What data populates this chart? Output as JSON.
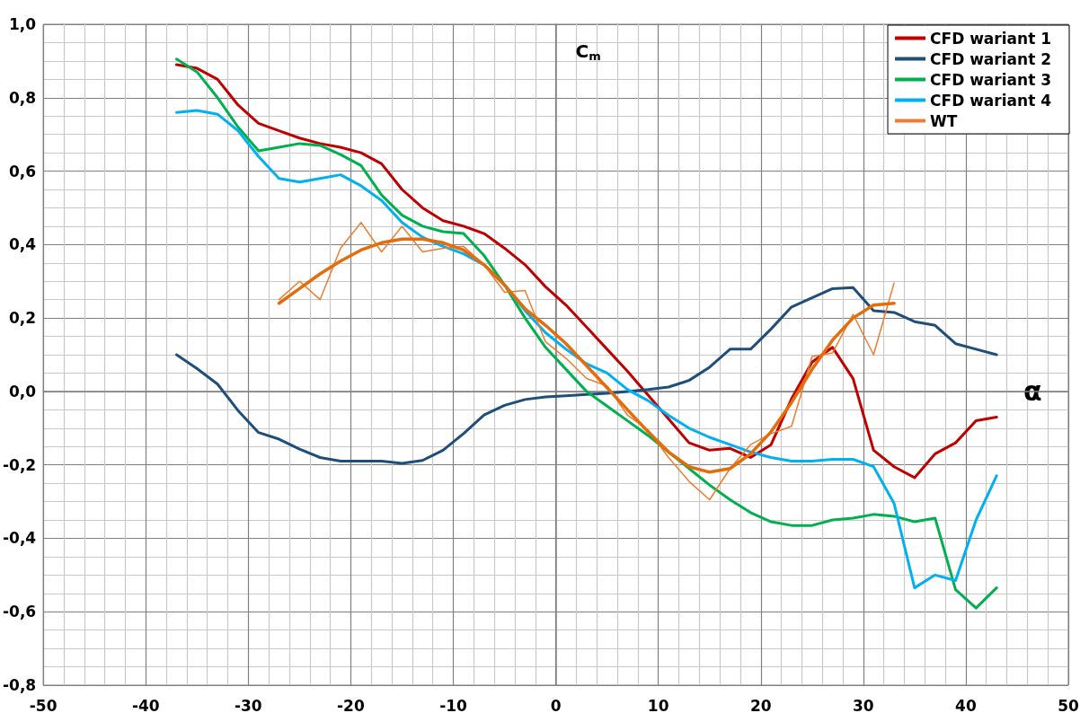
{
  "chart_data": {
    "type": "line",
    "ylabel": "C$_{m}$",
    "xlabel": "α",
    "xlim": [
      -50,
      50
    ],
    "ylim": [
      -0.8,
      1.0
    ],
    "xticks": [
      -50,
      -40,
      -30,
      -20,
      -10,
      0,
      10,
      20,
      30,
      40,
      50
    ],
    "yticks": [
      {
        "value": -0.8,
        "label": "-0,8"
      },
      {
        "value": -0.6,
        "label": "-0,6"
      },
      {
        "value": -0.4,
        "label": "-0,4"
      },
      {
        "value": -0.2,
        "label": "-0,2"
      },
      {
        "value": 0,
        "label": "0,0"
      },
      {
        "value": 0.2,
        "label": "0,2"
      },
      {
        "value": 0.4,
        "label": "0,4"
      },
      {
        "value": 0.6,
        "label": "0,6"
      },
      {
        "value": 0.8,
        "label": "0,8"
      },
      {
        "value": 1.0,
        "label": "1,0"
      }
    ],
    "grid": true,
    "legend": "top right",
    "marker": "none",
    "x": [
      -37,
      -35,
      -33,
      -31,
      -29,
      -27,
      -25,
      -23,
      -21,
      -19,
      -17,
      -15,
      -13,
      -11,
      -9,
      -7,
      -5,
      -3,
      -1,
      1,
      3,
      5,
      7,
      9,
      11,
      13,
      15,
      17,
      19,
      21,
      23,
      25,
      27,
      29,
      31,
      33,
      35,
      37,
      39,
      41,
      43
    ],
    "series": [
      {
        "name": "CFD wariant 1",
        "color": "#c00000",
        "values": [
          0.89,
          0.88,
          0.85,
          0.78,
          0.73,
          0.71,
          0.69,
          0.675,
          0.665,
          0.65,
          0.62,
          0.55,
          0.5,
          0.465,
          0.45,
          0.43,
          0.39,
          0.345,
          0.285,
          0.235,
          0.175,
          0.115,
          0.055,
          -0.01,
          -0.075,
          -0.14,
          -0.16,
          -0.155,
          -0.18,
          -0.145,
          -0.02,
          0.08,
          0.12,
          0.035,
          -0.16,
          -0.205,
          -0.235,
          -0.17,
          -0.14,
          -0.08,
          -0.07
        ]
      },
      {
        "name": "CFD wariant 2",
        "color": "#1f4e79",
        "values": [
          0.1,
          0.062,
          0.02,
          -0.052,
          -0.112,
          -0.13,
          -0.157,
          -0.18,
          -0.19,
          -0.19,
          -0.19,
          -0.196,
          -0.188,
          -0.16,
          -0.115,
          -0.064,
          -0.038,
          -0.022,
          -0.015,
          -0.012,
          -0.008,
          -0.005,
          0.0,
          0.005,
          0.012,
          0.03,
          0.066,
          0.115,
          0.115,
          0.17,
          0.23,
          0.255,
          0.28,
          0.283,
          0.22,
          0.215,
          0.19,
          0.18,
          0.13,
          0.115,
          0.1
        ]
      },
      {
        "name": "CFD wariant 3",
        "color": "#00b050",
        "values": [
          0.905,
          0.87,
          0.8,
          0.72,
          0.655,
          0.665,
          0.675,
          0.67,
          0.645,
          0.615,
          0.535,
          0.48,
          0.45,
          0.435,
          0.43,
          0.37,
          0.29,
          0.2,
          0.12,
          0.06,
          0.0,
          -0.04,
          -0.08,
          -0.12,
          -0.165,
          -0.21,
          -0.255,
          -0.295,
          -0.33,
          -0.355,
          -0.365,
          -0.365,
          -0.35,
          -0.345,
          -0.335,
          -0.34,
          -0.355,
          -0.345,
          -0.54,
          -0.59,
          -0.535
        ]
      },
      {
        "name": "CFD wariant 4",
        "color": "#00b0f0",
        "values": [
          0.76,
          0.765,
          0.755,
          0.71,
          0.64,
          0.58,
          0.57,
          0.58,
          0.59,
          0.56,
          0.52,
          0.46,
          0.42,
          0.395,
          0.375,
          0.345,
          0.29,
          0.22,
          0.16,
          0.115,
          0.075,
          0.05,
          0.005,
          -0.025,
          -0.065,
          -0.1,
          -0.125,
          -0.145,
          -0.165,
          -0.18,
          -0.19,
          -0.19,
          -0.185,
          -0.185,
          -0.205,
          -0.305,
          -0.535,
          -0.5,
          -0.515,
          -0.35,
          -0.23
        ]
      },
      {
        "name": "WT",
        "color": "#ed7d31",
        "x": [
          -27,
          -25,
          -23,
          -21,
          -19,
          -17,
          -15,
          -13,
          -11,
          -9,
          -7,
          -5,
          -3,
          -1,
          1,
          3,
          5,
          7,
          9,
          11,
          13,
          15,
          17,
          19,
          21,
          23,
          25,
          27,
          29,
          31,
          33
        ],
        "values": [
          0.25,
          0.3,
          0.25,
          0.39,
          0.46,
          0.38,
          0.45,
          0.38,
          0.39,
          0.395,
          0.345,
          0.27,
          0.275,
          0.135,
          0.09,
          0.035,
          0.015,
          -0.065,
          -0.105,
          -0.18,
          -0.245,
          -0.295,
          -0.21,
          -0.145,
          -0.115,
          -0.095,
          0.095,
          0.105,
          0.21,
          0.1,
          0.295
        ]
      },
      {
        "color": "#e46c0a",
        "x": [
          -27,
          -25,
          -23,
          -21,
          -19,
          -17,
          -15,
          -13,
          -11,
          -9,
          -7,
          -5,
          -3,
          -1,
          1,
          3,
          5,
          7,
          9,
          11,
          13,
          15,
          17,
          19,
          21,
          23,
          25,
          27,
          29,
          31,
          33
        ],
        "values": [
          0.24,
          0.28,
          0.32,
          0.355,
          0.385,
          0.405,
          0.415,
          0.415,
          0.405,
          0.385,
          0.345,
          0.29,
          0.225,
          0.18,
          0.13,
          0.07,
          0.01,
          -0.05,
          -0.11,
          -0.165,
          -0.205,
          -0.22,
          -0.21,
          -0.17,
          -0.11,
          -0.03,
          0.06,
          0.14,
          0.2,
          0.235,
          0.24
        ]
      }
    ]
  }
}
